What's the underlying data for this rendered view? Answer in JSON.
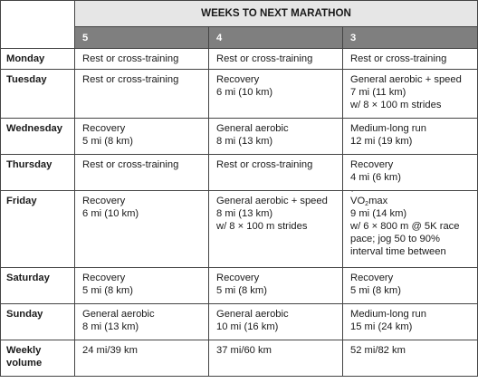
{
  "header": {
    "title": "WEEKS TO NEXT MARATHON",
    "weeks": [
      "5",
      "4",
      "3"
    ]
  },
  "rows": [
    {
      "day": [
        "Monday"
      ],
      "cells": [
        [
          "Rest or cross-training"
        ],
        [
          "Rest or cross-training"
        ],
        [
          "Rest or cross-training"
        ]
      ]
    },
    {
      "day": [
        "Tuesday"
      ],
      "cells": [
        [
          "Rest or cross-training"
        ],
        [
          "Recovery",
          "6 mi (10 km)"
        ],
        [
          "General aerobic + speed",
          "7 mi (11 km)",
          "w/ 8 × 100 m strides"
        ]
      ]
    },
    {
      "day": [
        "Wednesday"
      ],
      "cells": [
        [
          "Recovery",
          "5 mi (8 km)"
        ],
        [
          "General aerobic",
          "8 mi (13 km)"
        ],
        [
          "Medium-long run",
          "12 mi (19 km)"
        ]
      ]
    },
    {
      "day": [
        "Thursday"
      ],
      "cells": [
        [
          "Rest or cross-training"
        ],
        [
          "Rest or cross-training"
        ],
        [
          "Recovery",
          "4 mi (6 km)"
        ]
      ]
    },
    {
      "day": [
        "Friday"
      ],
      "cells": [
        [
          "Recovery",
          "6 mi (10 km)"
        ],
        [
          "General aerobic + speed",
          "8 mi (13 km)",
          "w/ 8 × 100 m strides"
        ],
        [
          "V",
          "O",
          "2",
          "max",
          "9 mi (14 km)",
          "w/ 6 × 800 m @ 5K race",
          "pace; jog 50 to 90%",
          "interval time between"
        ]
      ]
    },
    {
      "day": [
        "Saturday"
      ],
      "cells": [
        [
          "Recovery",
          "5 mi (8 km)"
        ],
        [
          "Recovery",
          "5 mi (8 km)"
        ],
        [
          "Recovery",
          "5 mi (8 km)"
        ]
      ]
    },
    {
      "day": [
        "Sunday"
      ],
      "cells": [
        [
          "General aerobic",
          "8 mi (13 km)"
        ],
        [
          "General aerobic",
          "10 mi (16 km)"
        ],
        [
          "Medium-long run",
          "15 mi (24 km)"
        ]
      ]
    },
    {
      "day": [
        "Weekly",
        "volume"
      ],
      "cells": [
        [
          "24 mi/39 km"
        ],
        [
          "37 mi/60 km"
        ],
        [
          "52 mi/82 km"
        ]
      ]
    }
  ]
}
